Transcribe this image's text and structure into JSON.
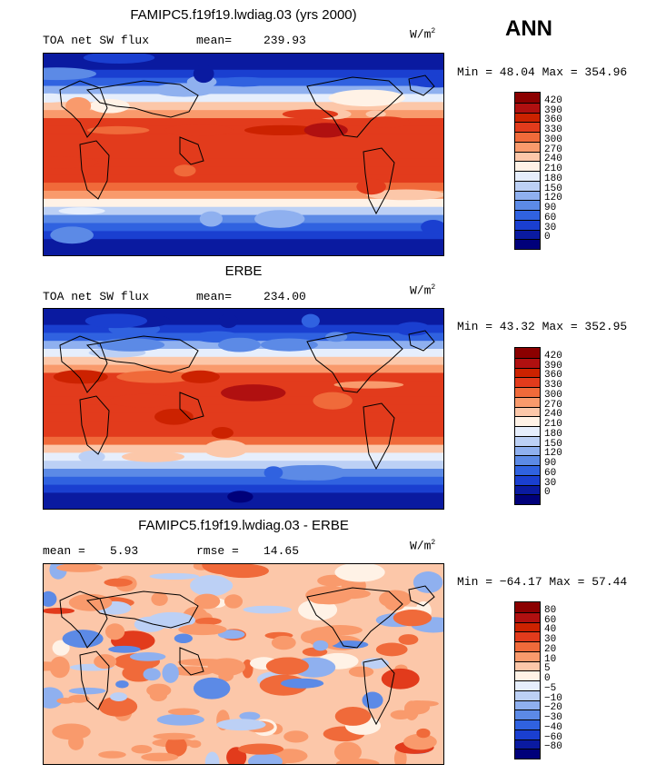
{
  "season": "ANN",
  "panels": [
    {
      "id": "model",
      "title": "FAMIPC5.f19f19.lwdiag.03 (yrs 2000)",
      "left_label": "TOA net SW flux",
      "stat_label": "mean=",
      "stat_value": "239.93",
      "units": "W/m",
      "units_sup": "2",
      "minmax": "Min =  48.04 Max = 354.96",
      "levels": [
        "420",
        "390",
        "360",
        "330",
        "300",
        "270",
        "240",
        "210",
        "180",
        "150",
        "120",
        "90",
        "60",
        "30",
        "0"
      ],
      "colors": [
        "#8b0000",
        "#b01010",
        "#cc2200",
        "#e23b1c",
        "#f06a3a",
        "#f99a6c",
        "#fcc7a9",
        "#fff2e6",
        "#e6eefc",
        "#bcd0f5",
        "#8fb0ef",
        "#5c8ae6",
        "#3062e0",
        "#1a3fd0",
        "#0a1aa0",
        "#00007a"
      ],
      "lat_profile": [
        0.05,
        0.08,
        0.12,
        0.2,
        0.32,
        0.45,
        0.58,
        0.7,
        0.78,
        0.82,
        0.83,
        0.8,
        0.78,
        0.8,
        0.82,
        0.8,
        0.74,
        0.64,
        0.52,
        0.4,
        0.3,
        0.2,
        0.13,
        0.08,
        0.05
      ]
    },
    {
      "id": "obs",
      "title": "ERBE",
      "left_label": "TOA net SW flux",
      "stat_label": "mean=",
      "stat_value": "234.00",
      "units": "W/m",
      "units_sup": "2",
      "minmax": "Min =  43.32 Max = 352.95",
      "levels": [
        "420",
        "390",
        "360",
        "330",
        "300",
        "270",
        "240",
        "210",
        "180",
        "150",
        "120",
        "90",
        "60",
        "30",
        "0"
      ],
      "colors": [
        "#8b0000",
        "#b01010",
        "#cc2200",
        "#e23b1c",
        "#f06a3a",
        "#f99a6c",
        "#fcc7a9",
        "#fff2e6",
        "#e6eefc",
        "#bcd0f5",
        "#8fb0ef",
        "#5c8ae6",
        "#3062e0",
        "#1a3fd0",
        "#0a1aa0",
        "#00007a"
      ],
      "lat_profile": [
        0.04,
        0.08,
        0.12,
        0.2,
        0.31,
        0.44,
        0.57,
        0.68,
        0.77,
        0.81,
        0.82,
        0.79,
        0.77,
        0.79,
        0.81,
        0.79,
        0.72,
        0.62,
        0.5,
        0.38,
        0.28,
        0.18,
        0.12,
        0.07,
        0.04
      ]
    },
    {
      "id": "diff",
      "title": "FAMIPC5.f19f19.lwdiag.03 - ERBE",
      "left_label": "mean =",
      "left_value": "5.93",
      "stat_label": "rmse =",
      "stat_value": "14.65",
      "units": "W/m",
      "units_sup": "2",
      "minmax": "Min = −64.17 Max =  57.44",
      "levels": [
        "80",
        "60",
        "40",
        "30",
        "20",
        "10",
        "5",
        "0",
        "−5",
        "−10",
        "−20",
        "−30",
        "−40",
        "−60",
        "−80"
      ],
      "colors": [
        "#8b0000",
        "#b01010",
        "#cc2200",
        "#e23b1c",
        "#f06a3a",
        "#f99a6c",
        "#fcc7a9",
        "#fff2e6",
        "#e6eefc",
        "#bcd0f5",
        "#8fb0ef",
        "#5c8ae6",
        "#3062e0",
        "#1a3fd0",
        "#0a1aa0",
        "#00007a"
      ]
    }
  ]
}
